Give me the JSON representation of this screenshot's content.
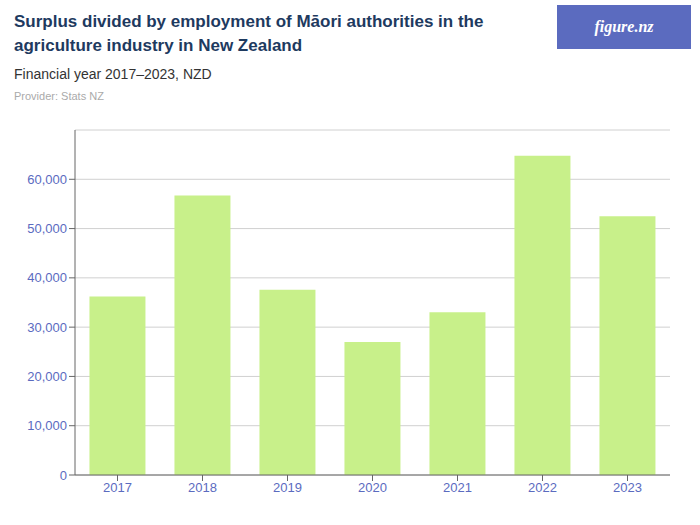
{
  "chart_data": {
    "type": "bar",
    "title": "Surplus divided by employment of Māori authorities in the\nagriculture industry in New Zealand",
    "subtitle": "Financial year 2017–2023, NZD",
    "annotations": [
      "Provider: Stats NZ",
      "figure.nz"
    ],
    "categories": [
      "2017",
      "2018",
      "2019",
      "2020",
      "2021",
      "2022",
      "2023"
    ],
    "values": [
      36200,
      56700,
      37600,
      27000,
      33000,
      64800,
      52500
    ],
    "color": "#c8f08a",
    "ylim": [
      0,
      70000
    ],
    "yticks": [
      0,
      {
        "value": 10000,
        "label": "10,000"
      },
      {
        "value": 20000,
        "label": "20,000"
      },
      {
        "value": 30000,
        "label": "30,000"
      },
      {
        "value": 40000,
        "label": "40,000"
      },
      {
        "value": 50000,
        "label": "50,000"
      },
      {
        "value": 60000,
        "label": "60,000"
      }
    ],
    "grid": true
  }
}
